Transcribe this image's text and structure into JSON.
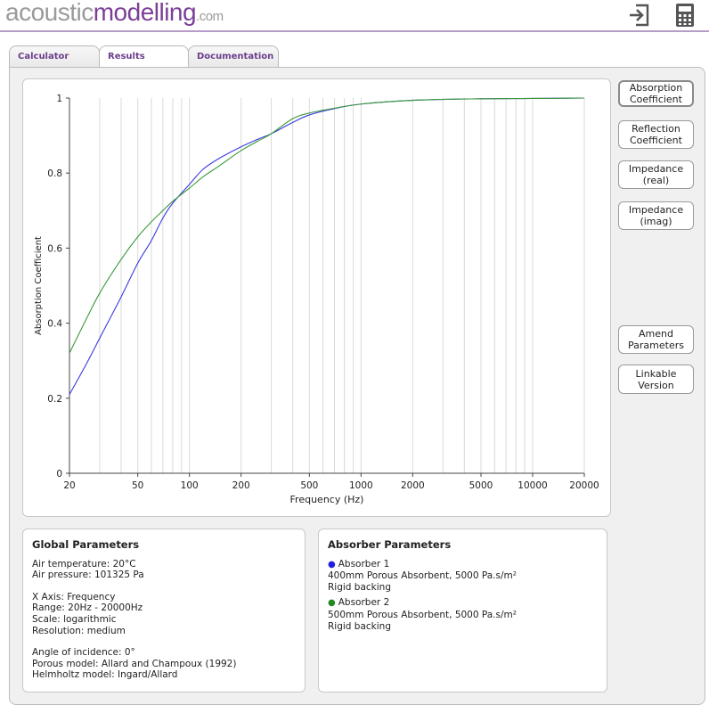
{
  "header": {
    "logo_part1": "acoustic",
    "logo_part2": "modelling",
    "logo_part3": ".com",
    "icons": [
      "exit-icon",
      "calculator-icon"
    ]
  },
  "tabs": [
    {
      "label": "Calculator",
      "active": false
    },
    {
      "label": "Results",
      "active": true
    },
    {
      "label": "Documentation",
      "active": false
    }
  ],
  "side_buttons": {
    "absorption": [
      "Absorption",
      "Coefficient"
    ],
    "reflection": [
      "Reflection",
      "Coefficient"
    ],
    "impedance_real": [
      "Impedance",
      "(real)"
    ],
    "impedance_imag": [
      "Impedance",
      "(imag)"
    ],
    "amend": [
      "Amend",
      "Parameters"
    ],
    "linkable": [
      "Linkable",
      "Version"
    ]
  },
  "chart_data": {
    "type": "line",
    "xlabel": "Frequency (Hz)",
    "ylabel": "Absorption Coefficient",
    "xscale": "log",
    "xlim": [
      20,
      20000
    ],
    "ylim": [
      0,
      1
    ],
    "x_ticks": [
      "20",
      "50",
      "100",
      "200",
      "500",
      "1000",
      "2000",
      "5000",
      "10000",
      "20000"
    ],
    "x_tick_values": [
      20,
      50,
      100,
      200,
      500,
      1000,
      2000,
      5000,
      10000,
      20000
    ],
    "y_ticks": [
      "0",
      "0.2",
      "0.4",
      "0.6",
      "0.8",
      "1"
    ],
    "y_tick_values": [
      0,
      0.2,
      0.4,
      0.6,
      0.8,
      1
    ],
    "grid": true,
    "series": [
      {
        "color": "#3a3adf",
        "x": [
          20,
          25,
          30,
          40,
          50,
          60,
          70,
          80,
          100,
          120,
          150,
          200,
          250,
          300,
          400,
          500,
          700,
          1000,
          2000,
          5000,
          10000,
          20000
        ],
        "y": [
          0.21,
          0.29,
          0.36,
          0.47,
          0.56,
          0.62,
          0.68,
          0.72,
          0.77,
          0.81,
          0.84,
          0.87,
          0.89,
          0.905,
          0.935,
          0.955,
          0.972,
          0.984,
          0.994,
          0.998,
          0.999,
          1.0
        ]
      },
      {
        "color": "#3a9a3a",
        "x": [
          20,
          25,
          30,
          40,
          50,
          60,
          70,
          80,
          100,
          120,
          150,
          200,
          250,
          300,
          400,
          500,
          700,
          1000,
          2000,
          5000,
          10000,
          20000
        ],
        "y": [
          0.32,
          0.41,
          0.48,
          0.57,
          0.63,
          0.67,
          0.7,
          0.725,
          0.76,
          0.79,
          0.82,
          0.86,
          0.885,
          0.905,
          0.945,
          0.96,
          0.973,
          0.984,
          0.994,
          0.998,
          0.999,
          1.0
        ]
      }
    ]
  },
  "global_params": {
    "title": "Global Parameters",
    "air_temp": "Air temperature: 20°C",
    "air_pressure": "Air pressure: 101325 Pa",
    "x_axis": "X Axis: Frequency",
    "range": "Range: 20Hz - 20000Hz",
    "scale": "Scale: logarithmic",
    "resolution": "Resolution: medium",
    "angle": "Angle of incidence: 0°",
    "porous_model": "Porous model: Allard and Champoux (1992)",
    "helmholtz_model": "Helmholtz model: Ingard/Allard"
  },
  "absorber_params": {
    "title": "Absorber Parameters",
    "absorbers": [
      {
        "name": "Absorber 1",
        "color": "#2020e0",
        "desc": "400mm Porous Absorbent, 5000 Pa.s/m²",
        "backing": "Rigid backing"
      },
      {
        "name": "Absorber 2",
        "color": "#208a20",
        "desc": "500mm Porous Absorbent, 5000 Pa.s/m²",
        "backing": "Rigid backing"
      }
    ]
  }
}
